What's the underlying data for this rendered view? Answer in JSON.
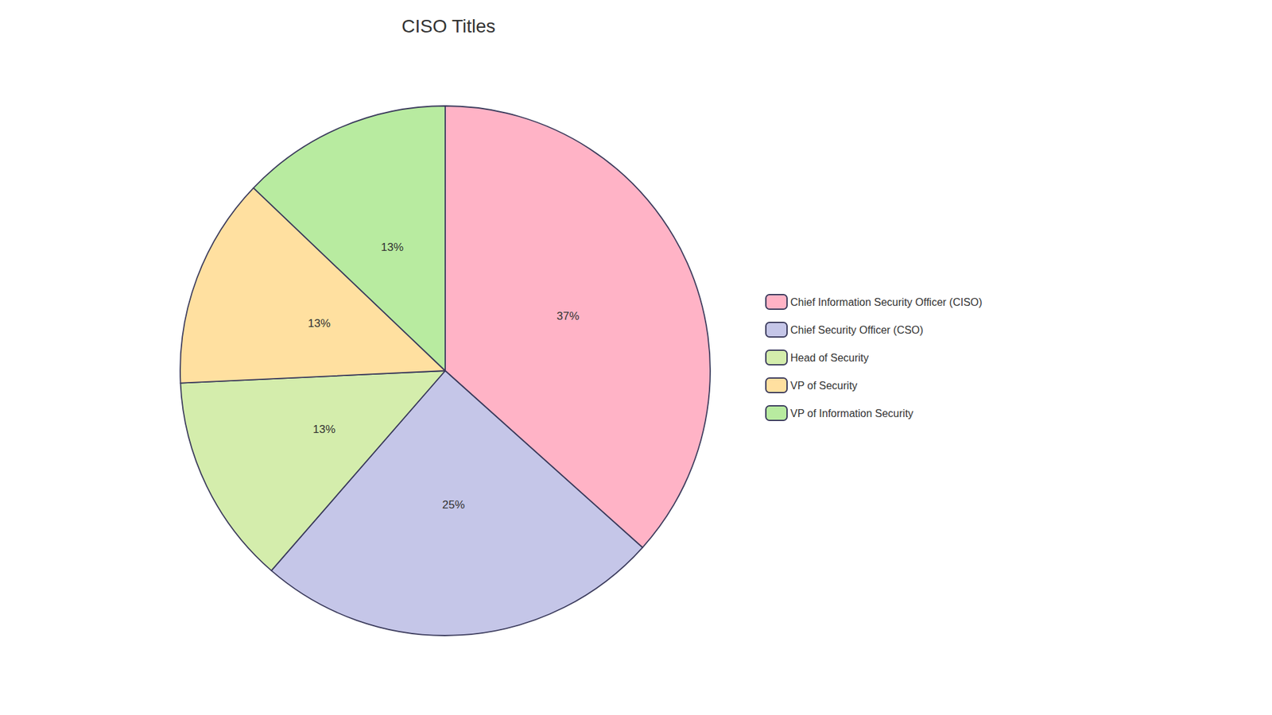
{
  "chart_data": {
    "type": "pie",
    "title": "CISO Titles",
    "categories": [
      "Chief Information Security Officer (CISO)",
      "Chief Security Officer (CSO)",
      "Head of Security",
      "VP of Security",
      "VP of Information Security"
    ],
    "values": [
      37,
      25,
      13,
      13,
      13
    ],
    "value_labels": [
      "37%",
      "25%",
      "13%",
      "13%",
      "13%"
    ],
    "colors": [
      "#FFB3C6",
      "#C5C6E8",
      "#D4EDAC",
      "#FFE0A0",
      "#B8EBA0"
    ],
    "data_labels": true,
    "legend": "right"
  }
}
